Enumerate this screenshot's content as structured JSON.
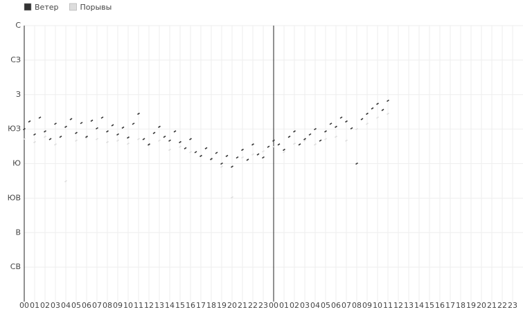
{
  "chart_data": {
    "type": "scatter",
    "series": [
      {
        "name": "Ветер",
        "color": "#333333",
        "x": [
          0,
          0.5,
          1,
          1.5,
          2,
          2.5,
          3,
          3.5,
          4,
          4.5,
          5,
          5.5,
          6,
          6.5,
          7,
          7.5,
          8,
          8.5,
          9,
          9.5,
          10,
          10.5,
          11,
          11.5,
          12,
          12.5,
          13,
          13.5,
          14,
          14.5,
          15,
          15.5,
          16,
          16.5,
          17,
          17.5,
          18,
          18.5,
          19,
          19.5,
          20,
          20.5,
          21,
          21.5,
          22,
          22.5,
          23,
          23.5,
          24,
          24.5,
          25,
          25.5,
          26,
          26.5,
          27,
          27.5,
          28,
          28.5,
          29,
          29.5,
          30,
          30.5,
          31,
          31.5,
          32,
          32.5,
          33,
          33.5,
          34,
          34.5,
          35
        ],
        "values": [
          225,
          235,
          218,
          240,
          222,
          212,
          232,
          215,
          228,
          238,
          220,
          233,
          215,
          236,
          226,
          240,
          222,
          230,
          218,
          227,
          214,
          232,
          245,
          212,
          205,
          220,
          228,
          215,
          210,
          222,
          208,
          200,
          212,
          195,
          190,
          200,
          186,
          194,
          180,
          190,
          176,
          188,
          198,
          185,
          205,
          192,
          188,
          202,
          210,
          205,
          198,
          215,
          222,
          205,
          212,
          218,
          225,
          210,
          222,
          232,
          228,
          240,
          235,
          226,
          180,
          238,
          245,
          252,
          258,
          250,
          262
        ]
      },
      {
        "name": "Порывы",
        "color": "#dddddd",
        "x": [
          0,
          1,
          2,
          3,
          4,
          5,
          6,
          7,
          8,
          9,
          10,
          11,
          12,
          13,
          14,
          15,
          16,
          17,
          18,
          19,
          20,
          21,
          22,
          23,
          24,
          25,
          26,
          27,
          28,
          29,
          30,
          31,
          32,
          33,
          34,
          35
        ],
        "values": [
          212,
          208,
          215,
          205,
          157,
          210,
          214,
          212,
          208,
          210,
          206,
          212,
          204,
          210,
          198,
          202,
          195,
          190,
          185,
          176,
          136,
          188,
          192,
          196,
          202,
          195,
          206,
          210,
          205,
          212,
          215,
          210,
          225,
          232,
          240,
          245
        ]
      }
    ],
    "xlim": [
      0,
      48
    ],
    "xticks": [
      {
        "value": 0,
        "label": "00"
      },
      {
        "value": 1,
        "label": "01"
      },
      {
        "value": 2,
        "label": "02"
      },
      {
        "value": 3,
        "label": "03"
      },
      {
        "value": 4,
        "label": "04"
      },
      {
        "value": 5,
        "label": "05"
      },
      {
        "value": 6,
        "label": "06"
      },
      {
        "value": 7,
        "label": "07"
      },
      {
        "value": 8,
        "label": "08"
      },
      {
        "value": 9,
        "label": "09"
      },
      {
        "value": 10,
        "label": "10"
      },
      {
        "value": 11,
        "label": "11"
      },
      {
        "value": 12,
        "label": "12"
      },
      {
        "value": 13,
        "label": "13"
      },
      {
        "value": 14,
        "label": "14"
      },
      {
        "value": 15,
        "label": "15"
      },
      {
        "value": 16,
        "label": "16"
      },
      {
        "value": 17,
        "label": "17"
      },
      {
        "value": 18,
        "label": "18"
      },
      {
        "value": 19,
        "label": "19"
      },
      {
        "value": 20,
        "label": "20"
      },
      {
        "value": 21,
        "label": "21"
      },
      {
        "value": 22,
        "label": "22"
      },
      {
        "value": 23,
        "label": "23"
      },
      {
        "value": 24,
        "label": "00"
      },
      {
        "value": 25,
        "label": "01"
      },
      {
        "value": 26,
        "label": "02"
      },
      {
        "value": 27,
        "label": "03"
      },
      {
        "value": 28,
        "label": "04"
      },
      {
        "value": 29,
        "label": "05"
      },
      {
        "value": 30,
        "label": "06"
      },
      {
        "value": 31,
        "label": "07"
      },
      {
        "value": 32,
        "label": "08"
      },
      {
        "value": 33,
        "label": "09"
      },
      {
        "value": 34,
        "label": "10"
      },
      {
        "value": 35,
        "label": "11"
      },
      {
        "value": 36,
        "label": "12"
      },
      {
        "value": 37,
        "label": "13"
      },
      {
        "value": 38,
        "label": "14"
      },
      {
        "value": 39,
        "label": "15"
      },
      {
        "value": 40,
        "label": "16"
      },
      {
        "value": 41,
        "label": "17"
      },
      {
        "value": 42,
        "label": "18"
      },
      {
        "value": 43,
        "label": "19"
      },
      {
        "value": 44,
        "label": "20"
      },
      {
        "value": 45,
        "label": "21"
      },
      {
        "value": 46,
        "label": "22"
      },
      {
        "value": 47,
        "label": "23"
      }
    ],
    "ylim": [
      0,
      360
    ],
    "yticks": [
      {
        "value": 360,
        "label": "С"
      },
      {
        "value": 315,
        "label": "СЗ"
      },
      {
        "value": 270,
        "label": "З"
      },
      {
        "value": 225,
        "label": "ЮЗ"
      },
      {
        "value": 180,
        "label": "Ю"
      },
      {
        "value": 135,
        "label": "ЮВ"
      },
      {
        "value": 90,
        "label": "В"
      },
      {
        "value": 45,
        "label": "СВ"
      }
    ],
    "vline": 24,
    "grid": true
  }
}
